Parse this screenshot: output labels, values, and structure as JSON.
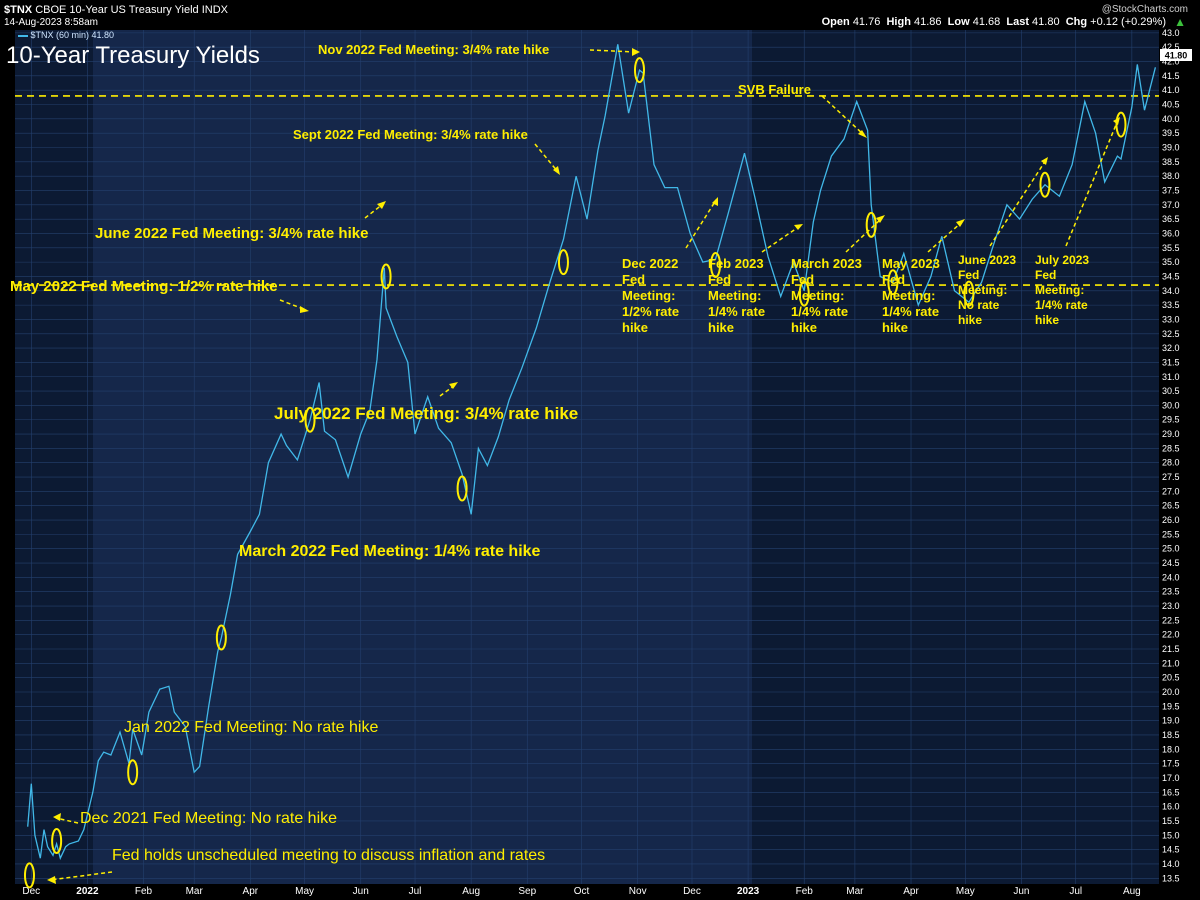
{
  "header": {
    "symbol": "$TNX",
    "description": "CBOE 10-Year US Treasury Yield INDX",
    "watermark": "@StockCharts.com",
    "date": "14-Aug-2023 8:58am",
    "open_label": "Open",
    "open": "41.76",
    "high_label": "High",
    "high": "41.86",
    "low_label": "Low",
    "low": "41.68",
    "last_label": "Last",
    "last": "41.80",
    "chg_label": "Chg",
    "chg": "+0.12 (+0.29%)",
    "legend": "$TNX (60 min) 41.80",
    "last_badge": "41.80"
  },
  "chart_data": {
    "type": "line",
    "title": "10-Year Treasury Yields",
    "series": [
      {
        "name": "$TNX (60 min)",
        "x": [
          "2021-11-29",
          "2021-12-01",
          "2021-12-03",
          "2021-12-06",
          "2021-12-08",
          "2021-12-10",
          "2021-12-13",
          "2021-12-15",
          "2021-12-17",
          "2021-12-20",
          "2021-12-22",
          "2021-12-27",
          "2021-12-30",
          "2022-01-04",
          "2022-01-07",
          "2022-01-10",
          "2022-01-14",
          "2022-01-19",
          "2022-01-24",
          "2022-01-26",
          "2022-01-31",
          "2022-02-04",
          "2022-02-10",
          "2022-02-15",
          "2022-02-18",
          "2022-02-24",
          "2022-03-01",
          "2022-03-04",
          "2022-03-09",
          "2022-03-14",
          "2022-03-16",
          "2022-03-21",
          "2022-03-25",
          "2022-04-01",
          "2022-04-06",
          "2022-04-11",
          "2022-04-18",
          "2022-04-21",
          "2022-04-27",
          "2022-05-04",
          "2022-05-09",
          "2022-05-12",
          "2022-05-18",
          "2022-05-25",
          "2022-06-01",
          "2022-06-06",
          "2022-06-10",
          "2022-06-14",
          "2022-06-15",
          "2022-06-21",
          "2022-06-27",
          "2022-07-01",
          "2022-07-08",
          "2022-07-14",
          "2022-07-21",
          "2022-07-27",
          "2022-08-01",
          "2022-08-05",
          "2022-08-10",
          "2022-08-16",
          "2022-08-22",
          "2022-08-29",
          "2022-09-06",
          "2022-09-13",
          "2022-09-21",
          "2022-09-28",
          "2022-10-04",
          "2022-10-10",
          "2022-10-14",
          "2022-10-21",
          "2022-10-27",
          "2022-11-02",
          "2022-11-04",
          "2022-11-10",
          "2022-11-16",
          "2022-11-23",
          "2022-11-30",
          "2022-12-07",
          "2022-12-14",
          "2022-12-21",
          "2022-12-30",
          "2023-01-05",
          "2023-01-12",
          "2023-01-19",
          "2023-01-26",
          "2023-02-01",
          "2023-02-06",
          "2023-02-10",
          "2023-02-16",
          "2023-02-23",
          "2023-03-02",
          "2023-03-08",
          "2023-03-10",
          "2023-03-13",
          "2023-03-15",
          "2023-03-22",
          "2023-03-28",
          "2023-04-05",
          "2023-04-12",
          "2023-04-18",
          "2023-04-25",
          "2023-05-03",
          "2023-05-10",
          "2023-05-16",
          "2023-05-24",
          "2023-05-31",
          "2023-06-07",
          "2023-06-14",
          "2023-06-22",
          "2023-06-29",
          "2023-07-06",
          "2023-07-12",
          "2023-07-17",
          "2023-07-24",
          "2023-07-26",
          "2023-08-01",
          "2023-08-04",
          "2023-08-08",
          "2023-08-14"
        ],
        "y": [
          15.3,
          16.8,
          15.0,
          14.2,
          15.2,
          14.6,
          14.3,
          14.7,
          14.2,
          14.6,
          14.7,
          14.8,
          15.2,
          16.5,
          17.6,
          17.9,
          17.8,
          18.6,
          17.5,
          18.7,
          17.8,
          19.3,
          20.1,
          20.2,
          19.3,
          18.8,
          17.2,
          17.4,
          19.5,
          21.4,
          21.9,
          23.4,
          24.8,
          25.6,
          26.2,
          28.0,
          29.0,
          28.6,
          28.1,
          29.5,
          30.8,
          29.1,
          28.8,
          27.5,
          29.0,
          29.8,
          31.6,
          34.8,
          33.4,
          32.4,
          31.5,
          29.0,
          30.3,
          29.2,
          28.7,
          27.6,
          26.2,
          28.5,
          27.9,
          28.9,
          30.2,
          31.3,
          32.7,
          34.2,
          35.8,
          38.0,
          36.5,
          38.9,
          40.1,
          42.6,
          40.2,
          41.7,
          41.6,
          38.4,
          37.6,
          37.6,
          36.0,
          35.0,
          35.1,
          36.7,
          38.8,
          37.2,
          35.2,
          33.8,
          35.0,
          34.0,
          36.4,
          37.5,
          38.7,
          39.3,
          40.6,
          39.6,
          37.0,
          35.5,
          34.5,
          34.3,
          35.3,
          33.5,
          34.5,
          35.9,
          34.0,
          33.6,
          34.3,
          35.5,
          37.0,
          36.5,
          37.2,
          37.7,
          37.3,
          38.4,
          40.6,
          39.5,
          37.8,
          38.7,
          38.6,
          40.4,
          41.9,
          40.3,
          41.8
        ]
      }
    ],
    "xlim": [
      "2021-11-22",
      "2023-08-16"
    ],
    "x_ticks": [
      {
        "date": "2021-12-01",
        "label": "Dec"
      },
      {
        "date": "2022-01-01",
        "label": "2022"
      },
      {
        "date": "2022-02-01",
        "label": "Feb"
      },
      {
        "date": "2022-03-01",
        "label": "Mar"
      },
      {
        "date": "2022-04-01",
        "label": "Apr"
      },
      {
        "date": "2022-05-01",
        "label": "May"
      },
      {
        "date": "2022-06-01",
        "label": "Jun"
      },
      {
        "date": "2022-07-01",
        "label": "Jul"
      },
      {
        "date": "2022-08-01",
        "label": "Aug"
      },
      {
        "date": "2022-09-01",
        "label": "Sep"
      },
      {
        "date": "2022-10-01",
        "label": "Oct"
      },
      {
        "date": "2022-11-01",
        "label": "Nov"
      },
      {
        "date": "2022-12-01",
        "label": "Dec"
      },
      {
        "date": "2023-01-01",
        "label": "2023"
      },
      {
        "date": "2023-02-01",
        "label": "Feb"
      },
      {
        "date": "2023-03-01",
        "label": "Mar"
      },
      {
        "date": "2023-04-01",
        "label": "Apr"
      },
      {
        "date": "2023-05-01",
        "label": "May"
      },
      {
        "date": "2023-06-01",
        "label": "Jun"
      },
      {
        "date": "2023-07-01",
        "label": "Jul"
      },
      {
        "date": "2023-08-01",
        "label": "Aug"
      }
    ],
    "ylim": [
      13.3,
      43.1
    ],
    "y_ticks": [
      "13.5",
      "14.0",
      "14.5",
      "15.0",
      "15.5",
      "16.0",
      "16.5",
      "17.0",
      "17.5",
      "18.0",
      "18.5",
      "19.0",
      "19.5",
      "20.0",
      "20.5",
      "21.0",
      "21.5",
      "22.0",
      "22.5",
      "23.0",
      "23.5",
      "24.0",
      "24.5",
      "25.0",
      "25.5",
      "26.0",
      "26.5",
      "27.0",
      "27.5",
      "28.0",
      "28.5",
      "29.0",
      "29.5",
      "30.0",
      "30.5",
      "31.0",
      "31.5",
      "32.0",
      "32.5",
      "33.0",
      "33.5",
      "34.0",
      "34.5",
      "35.0",
      "35.5",
      "36.0",
      "36.5",
      "37.0",
      "37.5",
      "38.0",
      "38.5",
      "39.0",
      "39.5",
      "40.0",
      "40.5",
      "41.0",
      "41.5",
      "42.0",
      "42.5",
      "43.0"
    ],
    "grid": true,
    "y_axis_side": "right",
    "reference_lines": [
      {
        "y": 40.8
      },
      {
        "y": 34.2
      }
    ],
    "event_markers": [
      {
        "date": "2021-11-30",
        "y": 13.6
      },
      {
        "date": "2021-12-15",
        "y": 14.8
      },
      {
        "date": "2022-01-26",
        "y": 17.2
      },
      {
        "date": "2022-03-16",
        "y": 21.9
      },
      {
        "date": "2022-05-04",
        "y": 29.5
      },
      {
        "date": "2022-06-15",
        "y": 34.5
      },
      {
        "date": "2022-07-27",
        "y": 27.1
      },
      {
        "date": "2022-09-21",
        "y": 35.0
      },
      {
        "date": "2022-11-02",
        "y": 41.7
      },
      {
        "date": "2022-12-14",
        "y": 34.9
      },
      {
        "date": "2023-02-01",
        "y": 33.9
      },
      {
        "date": "2023-03-10",
        "y": 36.3
      },
      {
        "date": "2023-03-22",
        "y": 34.3
      },
      {
        "date": "2023-05-03",
        "y": 33.9
      },
      {
        "date": "2023-06-14",
        "y": 37.7
      },
      {
        "date": "2023-07-26",
        "y": 39.8
      }
    ],
    "annotations": [
      "Nov 2022 Fed Meeting: 3/4% rate hike",
      "SVB Failure",
      "Sept 2022 Fed Meeting: 3/4% rate hike",
      "June 2022 Fed Meeting: 3/4% rate hike",
      "May 2022 Fed Meeting: 1/2% rate hike",
      "July 2022 Fed Meeting: 3/4% rate hike",
      "March 2022 Fed Meeting: 1/4% rate hike",
      "Jan 2022 Fed Meeting: No rate hike",
      "Dec 2021 Fed Meeting: No rate hike",
      "Fed holds unscheduled meeting to discuss inflation and rates",
      "Dec 2022 Fed Meeting: 1/2% rate hike",
      "Feb 2023 Fed Meeting: 1/4% rate hike",
      "March 2023 Fed Meeting: 1/4% rate hike",
      "May 2023 Fed Meeting: 1/4% rate hike",
      "June 2023 Fed Meeting: No rate hike",
      "July 2023 Fed Meeting: 1/4% rate hike"
    ],
    "colors": {
      "line": "#41b8e8",
      "annotation": "#ffee00",
      "background": "#0c1a33"
    }
  }
}
